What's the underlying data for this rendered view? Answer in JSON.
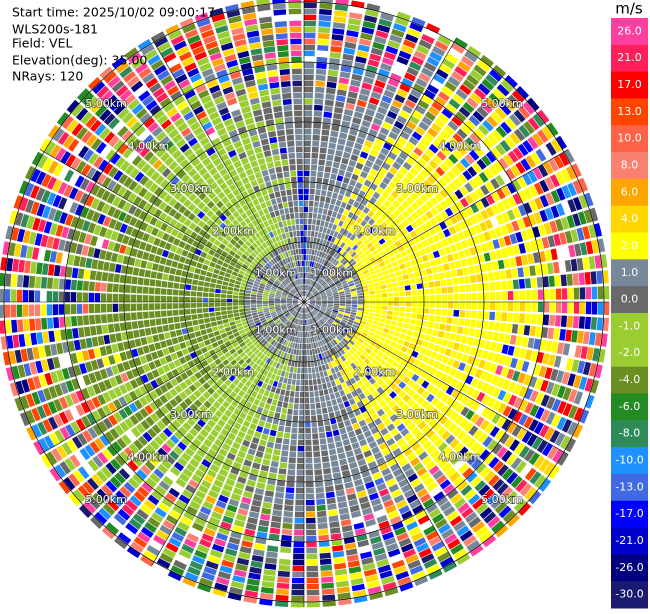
{
  "info": {
    "start_time": "Start time: 2025/10/02 09:00:17",
    "site": "WLS200s-181",
    "field": "Field: VEL",
    "elevation": "Elevation(deg): 35.00",
    "nrays": "NRays: 120"
  },
  "colorbar": {
    "unit": "m/s",
    "levels": [
      {
        "label": "26.0",
        "color": "#ff3fa0"
      },
      {
        "label": "21.0",
        "color": "#ff1f5a"
      },
      {
        "label": "17.0",
        "color": "#ff0000"
      },
      {
        "label": "13.0",
        "color": "#ff4500"
      },
      {
        "label": "10.0",
        "color": "#ff6347"
      },
      {
        "label": "8.0",
        "color": "#fa8072"
      },
      {
        "label": "6.0",
        "color": "#ffa500"
      },
      {
        "label": "4.0",
        "color": "#ffd700"
      },
      {
        "label": "2.0",
        "color": "#ffff00"
      },
      {
        "label": "1.0",
        "color": "#778899"
      },
      {
        "label": "0.0",
        "color": "#696969"
      },
      {
        "label": "-1.0",
        "color": "#9acd32"
      },
      {
        "label": "-2.0",
        "color": "#9acd32"
      },
      {
        "label": "-4.0",
        "color": "#6b8e23"
      },
      {
        "label": "-6.0",
        "color": "#228b22"
      },
      {
        "label": "-8.0",
        "color": "#2e8b57"
      },
      {
        "label": "-10.0",
        "color": "#1e90ff"
      },
      {
        "label": "-13.0",
        "color": "#4169e1"
      },
      {
        "label": "-17.0",
        "color": "#0000ff"
      },
      {
        "label": "-21.0",
        "color": "#0000cd"
      },
      {
        "label": "-26.0",
        "color": "#000080"
      },
      {
        "label": "-30.0",
        "color": "#191970"
      }
    ]
  },
  "range_rings": {
    "labels": [
      "1.00km",
      "2.00km",
      "3.00km",
      "4.00km",
      "5.00km"
    ]
  }
}
